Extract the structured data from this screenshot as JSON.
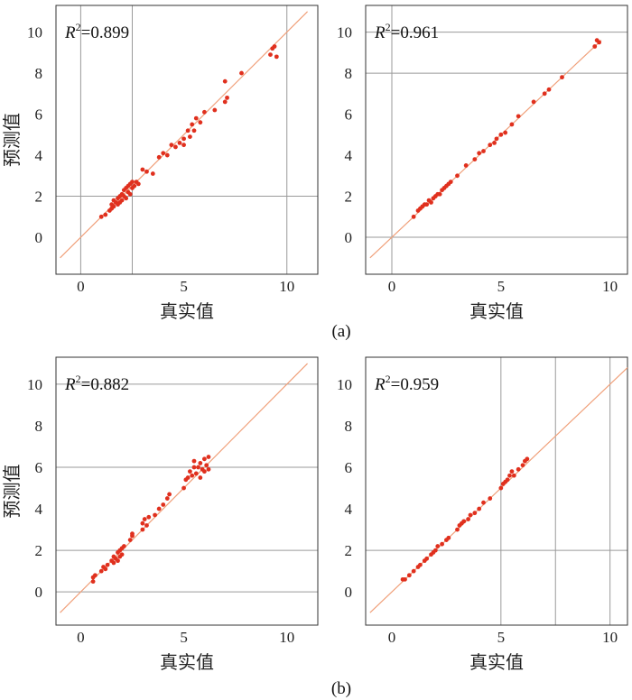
{
  "figure": {
    "captions": [
      "(a)",
      "(b)"
    ]
  },
  "colors": {
    "points": "#e0301e",
    "fit_line": "#f0a07a",
    "grid": "#9a9a9a",
    "frame": "#333333"
  },
  "chart_data": [
    {
      "type": "scatter",
      "group": "(a)",
      "xlabel": "真实值",
      "ylabel": "预测值",
      "annotation": {
        "var": "R",
        "sup": "2",
        "value": "=0.899"
      },
      "xlim": [
        -1.2,
        11.5
      ],
      "ylim": [
        -1.8,
        11.3
      ],
      "xticks": [
        0,
        5,
        10
      ],
      "yticks": [
        0,
        2,
        4,
        6,
        8,
        10
      ],
      "grid": {
        "v": [
          0,
          2.5,
          10
        ],
        "h": [
          2
        ]
      },
      "fit_line": [
        [
          -1,
          -1
        ],
        [
          11,
          11
        ]
      ],
      "points": [
        [
          1.0,
          1.0
        ],
        [
          1.2,
          1.1
        ],
        [
          1.4,
          1.3
        ],
        [
          1.5,
          1.6
        ],
        [
          1.5,
          1.4
        ],
        [
          1.6,
          1.8
        ],
        [
          1.6,
          1.5
        ],
        [
          1.7,
          1.7
        ],
        [
          1.8,
          1.9
        ],
        [
          1.8,
          1.6
        ],
        [
          1.9,
          2.0
        ],
        [
          1.9,
          1.7
        ],
        [
          2.0,
          2.1
        ],
        [
          2.0,
          1.8
        ],
        [
          2.1,
          2.3
        ],
        [
          2.1,
          2.0
        ],
        [
          2.2,
          1.9
        ],
        [
          2.2,
          2.4
        ],
        [
          2.3,
          2.2
        ],
        [
          2.3,
          2.5
        ],
        [
          2.4,
          2.1
        ],
        [
          2.4,
          2.6
        ],
        [
          2.5,
          2.4
        ],
        [
          2.5,
          2.7
        ],
        [
          2.6,
          2.5
        ],
        [
          2.7,
          2.7
        ],
        [
          2.8,
          2.6
        ],
        [
          3.0,
          3.3
        ],
        [
          3.2,
          3.2
        ],
        [
          3.5,
          3.1
        ],
        [
          3.8,
          3.9
        ],
        [
          4.0,
          4.1
        ],
        [
          4.2,
          4.0
        ],
        [
          4.4,
          4.5
        ],
        [
          4.6,
          4.4
        ],
        [
          4.8,
          4.6
        ],
        [
          5.0,
          4.8
        ],
        [
          5.0,
          4.5
        ],
        [
          5.2,
          5.2
        ],
        [
          5.3,
          4.9
        ],
        [
          5.4,
          5.5
        ],
        [
          5.5,
          5.2
        ],
        [
          5.6,
          5.8
        ],
        [
          5.8,
          5.6
        ],
        [
          6.0,
          6.1
        ],
        [
          6.5,
          6.2
        ],
        [
          7.0,
          6.6
        ],
        [
          7.1,
          6.8
        ],
        [
          7.0,
          7.6
        ],
        [
          7.8,
          8.0
        ],
        [
          9.2,
          8.9
        ],
        [
          9.4,
          9.3
        ],
        [
          9.5,
          8.8
        ],
        [
          9.3,
          9.2
        ]
      ]
    },
    {
      "type": "scatter",
      "group": "(a)",
      "xlabel": "真实值",
      "ylabel": "",
      "annotation": {
        "var": "R",
        "sup": "2",
        "value": "=0.961"
      },
      "xlim": [
        -1.2,
        10.8
      ],
      "ylim": [
        -1.8,
        11.3
      ],
      "xticks": [
        0,
        5,
        10
      ],
      "yticks": [
        0,
        2,
        4,
        6,
        8,
        10
      ],
      "grid": {
        "v": [
          0
        ],
        "h": [
          0,
          8,
          10
        ]
      },
      "fit_line": [
        [
          -1,
          -1
        ],
        [
          9.6,
          9.6
        ]
      ],
      "points": [
        [
          1.0,
          1.0
        ],
        [
          1.2,
          1.3
        ],
        [
          1.3,
          1.4
        ],
        [
          1.4,
          1.5
        ],
        [
          1.5,
          1.6
        ],
        [
          1.6,
          1.6
        ],
        [
          1.7,
          1.8
        ],
        [
          1.8,
          1.7
        ],
        [
          1.9,
          1.9
        ],
        [
          2.0,
          2.0
        ],
        [
          2.1,
          2.1
        ],
        [
          2.2,
          2.1
        ],
        [
          2.3,
          2.3
        ],
        [
          2.4,
          2.4
        ],
        [
          2.5,
          2.5
        ],
        [
          2.6,
          2.6
        ],
        [
          2.7,
          2.7
        ],
        [
          3.0,
          3.0
        ],
        [
          3.4,
          3.5
        ],
        [
          3.8,
          3.8
        ],
        [
          4.0,
          4.1
        ],
        [
          4.2,
          4.2
        ],
        [
          4.5,
          4.5
        ],
        [
          4.7,
          4.6
        ],
        [
          4.8,
          4.8
        ],
        [
          5.0,
          5.0
        ],
        [
          5.2,
          5.1
        ],
        [
          5.5,
          5.5
        ],
        [
          5.8,
          5.9
        ],
        [
          6.5,
          6.6
        ],
        [
          7.0,
          7.0
        ],
        [
          7.2,
          7.2
        ],
        [
          7.8,
          7.8
        ],
        [
          9.3,
          9.3
        ],
        [
          9.4,
          9.6
        ],
        [
          9.5,
          9.5
        ]
      ]
    },
    {
      "type": "scatter",
      "group": "(b)",
      "xlabel": "真实值",
      "ylabel": "预测值",
      "annotation": {
        "var": "R",
        "sup": "2",
        "value": "=0.882"
      },
      "xlim": [
        -1.2,
        11.5
      ],
      "ylim": [
        -1.6,
        11.3
      ],
      "xticks": [
        0,
        5,
        10
      ],
      "yticks": [
        0,
        2,
        4,
        6,
        8,
        10
      ],
      "grid": {
        "v": [],
        "h": [
          0,
          2,
          6,
          10
        ]
      },
      "fit_line": [
        [
          -1,
          -1
        ],
        [
          11,
          11
        ]
      ],
      "points": [
        [
          0.6,
          0.5
        ],
        [
          0.6,
          0.7
        ],
        [
          0.7,
          0.8
        ],
        [
          1.0,
          1.0
        ],
        [
          1.1,
          1.2
        ],
        [
          1.2,
          1.1
        ],
        [
          1.3,
          1.3
        ],
        [
          1.5,
          1.5
        ],
        [
          1.6,
          1.4
        ],
        [
          1.6,
          1.7
        ],
        [
          1.7,
          1.6
        ],
        [
          1.8,
          1.9
        ],
        [
          1.8,
          1.5
        ],
        [
          1.9,
          2.0
        ],
        [
          1.9,
          1.7
        ],
        [
          2.0,
          2.1
        ],
        [
          2.0,
          1.8
        ],
        [
          2.1,
          2.2
        ],
        [
          2.4,
          2.5
        ],
        [
          2.5,
          2.7
        ],
        [
          2.5,
          2.8
        ],
        [
          3.0,
          3.0
        ],
        [
          3.0,
          3.3
        ],
        [
          3.1,
          3.5
        ],
        [
          3.2,
          3.2
        ],
        [
          3.3,
          3.6
        ],
        [
          3.6,
          3.7
        ],
        [
          3.8,
          4.0
        ],
        [
          4.0,
          4.2
        ],
        [
          4.2,
          4.5
        ],
        [
          4.3,
          4.7
        ],
        [
          5.0,
          5.0
        ],
        [
          5.1,
          5.4
        ],
        [
          5.2,
          5.5
        ],
        [
          5.3,
          5.8
        ],
        [
          5.4,
          5.6
        ],
        [
          5.5,
          6.0
        ],
        [
          5.5,
          6.3
        ],
        [
          5.6,
          5.7
        ],
        [
          5.7,
          6.0
        ],
        [
          5.8,
          5.5
        ],
        [
          5.8,
          6.2
        ],
        [
          5.9,
          5.9
        ],
        [
          6.0,
          6.4
        ],
        [
          6.0,
          5.8
        ],
        [
          6.1,
          6.1
        ],
        [
          6.2,
          6.5
        ],
        [
          6.2,
          5.9
        ]
      ]
    },
    {
      "type": "scatter",
      "group": "(b)",
      "xlabel": "真实值",
      "ylabel": "",
      "annotation": {
        "var": "R",
        "sup": "2",
        "value": "=0.959"
      },
      "xlim": [
        -1.2,
        10.8
      ],
      "ylim": [
        -1.6,
        11.3
      ],
      "xticks": [
        0,
        5,
        10
      ],
      "yticks": [
        0,
        2,
        4,
        6,
        8,
        10
      ],
      "grid": {
        "v": [
          5,
          7.5,
          10
        ],
        "h": [
          2
        ]
      },
      "fit_line": [
        [
          -1,
          -1
        ],
        [
          10.8,
          10.8
        ]
      ],
      "points": [
        [
          0.5,
          0.6
        ],
        [
          0.6,
          0.6
        ],
        [
          0.8,
          0.8
        ],
        [
          1.0,
          1.0
        ],
        [
          1.2,
          1.2
        ],
        [
          1.3,
          1.3
        ],
        [
          1.5,
          1.5
        ],
        [
          1.6,
          1.6
        ],
        [
          1.8,
          1.8
        ],
        [
          1.9,
          1.9
        ],
        [
          2.0,
          2.0
        ],
        [
          2.1,
          2.2
        ],
        [
          2.3,
          2.3
        ],
        [
          2.5,
          2.5
        ],
        [
          2.6,
          2.6
        ],
        [
          3.0,
          3.0
        ],
        [
          3.1,
          3.2
        ],
        [
          3.2,
          3.3
        ],
        [
          3.3,
          3.4
        ],
        [
          3.5,
          3.5
        ],
        [
          3.6,
          3.7
        ],
        [
          3.8,
          3.8
        ],
        [
          4.0,
          4.0
        ],
        [
          4.2,
          4.3
        ],
        [
          4.5,
          4.5
        ],
        [
          5.0,
          5.0
        ],
        [
          5.1,
          5.2
        ],
        [
          5.2,
          5.3
        ],
        [
          5.3,
          5.4
        ],
        [
          5.4,
          5.6
        ],
        [
          5.5,
          5.8
        ],
        [
          5.6,
          5.6
        ],
        [
          5.8,
          5.9
        ],
        [
          6.0,
          6.1
        ],
        [
          6.1,
          6.3
        ],
        [
          6.2,
          6.4
        ]
      ]
    }
  ]
}
